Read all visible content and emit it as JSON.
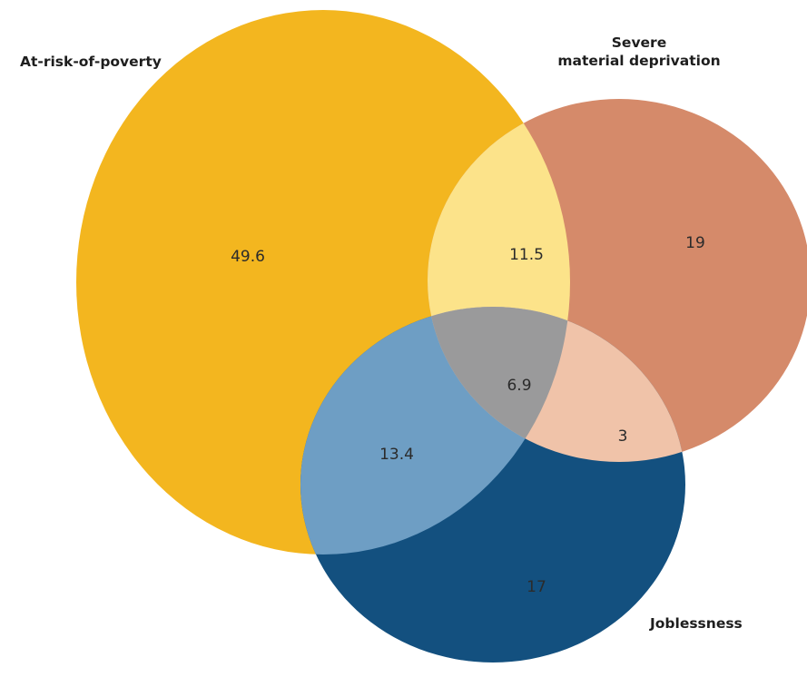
{
  "sets": {
    "poverty": {
      "label": "At-risk-of-poverty",
      "color": "#f3b61f"
    },
    "deprivation": {
      "label_line1": "Severe",
      "label_line2": "material deprivation",
      "color": "#d58a6a"
    },
    "joblessness": {
      "label": "Joblessness",
      "color": "#13507f"
    }
  },
  "regions": {
    "poverty_only": "49.6",
    "poverty_deprivation": "11.5",
    "deprivation_only": "19",
    "all_three": "6.9",
    "poverty_joblessness": "13.4",
    "deprivation_joblessness": "3",
    "joblessness_only": "17"
  },
  "overlap_colors": {
    "poverty_deprivation": "#fce38a",
    "poverty_joblessness": "#6e9ec4",
    "deprivation_joblessness": "#f0c3a9",
    "all_three": "#9a9a9b"
  }
}
